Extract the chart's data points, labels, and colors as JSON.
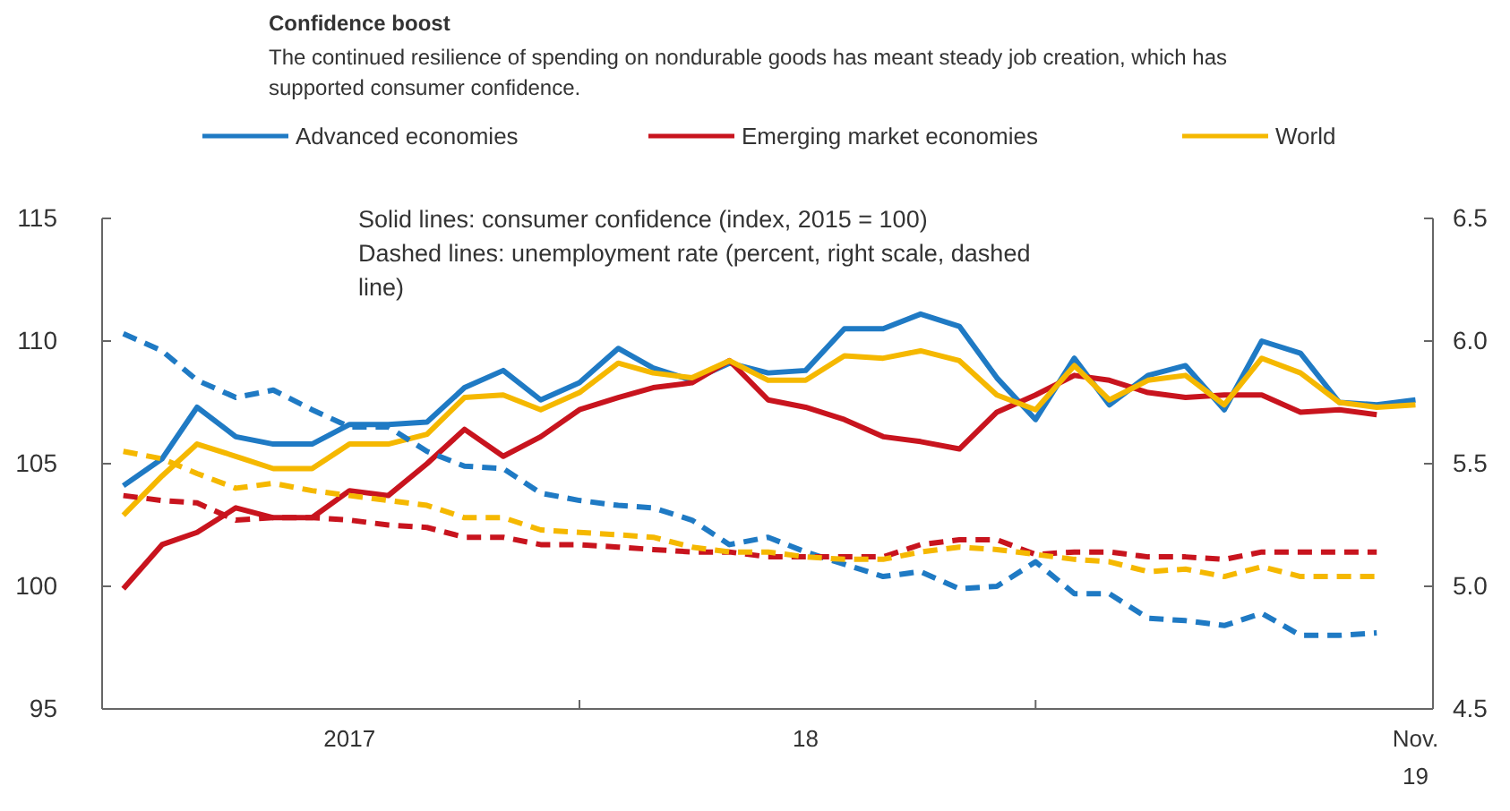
{
  "chart_data": {
    "type": "line",
    "title": "Confidence boost",
    "subtitle": "The continued resilience of spending on nondurable goods has meant steady job creation, which has supported consumer confidence.",
    "annotations": [
      "Solid lines: consumer confidence (index, 2015 = 100)",
      "Dashed lines: unemployment rate (percent, right scale, dashed line)"
    ],
    "x": [
      "2017-01",
      "2017-02",
      "2017-03",
      "2017-04",
      "2017-05",
      "2017-06",
      "2017-07",
      "2017-08",
      "2017-09",
      "2017-10",
      "2017-11",
      "2017-12",
      "2018-01",
      "2018-02",
      "2018-03",
      "2018-04",
      "2018-05",
      "2018-06",
      "2018-07",
      "2018-08",
      "2018-09",
      "2018-10",
      "2018-11",
      "2018-12",
      "2019-01",
      "2019-02",
      "2019-03",
      "2019-04",
      "2019-05",
      "2019-06",
      "2019-07",
      "2019-08",
      "2019-09",
      "2019-10",
      "2019-11"
    ],
    "series": [
      {
        "name": "Advanced economies",
        "color": "#1f7ac4",
        "values": [
          104.1,
          105.2,
          107.3,
          106.1,
          105.8,
          105.8,
          106.6,
          106.6,
          106.7,
          108.1,
          108.8,
          107.6,
          108.3,
          109.7,
          108.9,
          108.4,
          109.1,
          108.7,
          108.8,
          110.5,
          110.5,
          111.1,
          110.6,
          108.5,
          106.8,
          109.3,
          107.4,
          108.6,
          109.0,
          107.2,
          110.0,
          109.5,
          107.5,
          107.4,
          107.6
        ]
      },
      {
        "name": "Emerging market economies",
        "color": "#c8141e",
        "values": [
          99.9,
          101.7,
          102.2,
          103.2,
          102.8,
          102.8,
          103.9,
          103.7,
          105.0,
          106.4,
          105.3,
          106.1,
          107.2,
          107.7,
          108.1,
          108.3,
          109.2,
          107.6,
          107.3,
          106.8,
          106.1,
          105.9,
          105.6,
          107.1,
          107.8,
          108.6,
          108.4,
          107.9,
          107.7,
          107.8,
          107.8,
          107.1,
          107.2,
          107.0,
          null
        ]
      },
      {
        "name": "World",
        "color": "#f5b800",
        "values": [
          102.9,
          104.5,
          105.8,
          105.3,
          104.8,
          104.8,
          105.8,
          105.8,
          106.2,
          107.7,
          107.8,
          107.2,
          107.9,
          109.1,
          108.7,
          108.5,
          109.2,
          108.4,
          108.4,
          109.4,
          109.3,
          109.6,
          109.2,
          107.8,
          107.2,
          109.0,
          107.6,
          108.4,
          108.6,
          107.4,
          109.3,
          108.7,
          107.5,
          107.3,
          107.4
        ]
      },
      {
        "color": "#1f7ac4",
        "axis": "y2",
        "line_style": "dashed",
        "values": [
          6.03,
          5.96,
          5.84,
          5.77,
          5.8,
          5.72,
          5.65,
          5.65,
          5.55,
          5.49,
          5.48,
          5.38,
          5.35,
          5.33,
          5.32,
          5.27,
          5.17,
          5.2,
          5.14,
          5.09,
          5.04,
          5.06,
          4.99,
          5.0,
          5.1,
          4.97,
          4.97,
          4.87,
          4.86,
          4.84,
          4.89,
          4.8,
          4.8,
          4.81,
          null
        ]
      },
      {
        "color": "#c8141e",
        "axis": "y2",
        "line_style": "dashed",
        "values": [
          5.37,
          5.35,
          5.34,
          5.27,
          5.28,
          5.28,
          5.27,
          5.25,
          5.24,
          5.2,
          5.2,
          5.17,
          5.17,
          5.16,
          5.15,
          5.14,
          5.14,
          5.12,
          5.12,
          5.12,
          5.12,
          5.17,
          5.19,
          5.19,
          5.13,
          5.14,
          5.14,
          5.12,
          5.12,
          5.11,
          5.14,
          5.14,
          5.14,
          5.14,
          null
        ]
      },
      {
        "color": "#f5b800",
        "axis": "y2",
        "line_style": "dashed",
        "values": [
          5.55,
          5.52,
          5.46,
          5.4,
          5.42,
          5.39,
          5.37,
          5.35,
          5.33,
          5.28,
          5.28,
          5.23,
          5.22,
          5.21,
          5.2,
          5.16,
          5.14,
          5.14,
          5.12,
          5.11,
          5.11,
          5.14,
          5.16,
          5.15,
          5.13,
          5.11,
          5.1,
          5.06,
          5.07,
          5.04,
          5.08,
          5.04,
          5.04,
          5.04,
          null
        ]
      }
    ],
    "line_style": "solid",
    "legend": "top",
    "grid": false,
    "marker": "none",
    "xlim": [
      "2016-12-15",
      "2019-11-15"
    ],
    "xticks": [
      {
        "value": "2017-07-01",
        "label": "2017"
      },
      {
        "value": "2018-01-01",
        "label": null
      },
      {
        "value": "2018-07-01",
        "label": "18"
      },
      {
        "value": "2019-01-01",
        "label": null
      },
      {
        "value": "2019-11-01",
        "label": "Nov.\n19"
      }
    ],
    "ylim": [
      95,
      115
    ],
    "yticks": [
      95,
      100,
      105,
      110,
      115
    ],
    "y2lim": [
      4.5,
      6.5
    ],
    "y2ticks": [
      {
        "value": 4.5,
        "label": "4.5"
      },
      {
        "value": 5,
        "label": "5.0"
      },
      {
        "value": 5.5,
        "label": "5.5"
      },
      {
        "value": 6,
        "label": "6.0"
      },
      {
        "value": 6.5,
        "label": "6.5"
      }
    ]
  }
}
